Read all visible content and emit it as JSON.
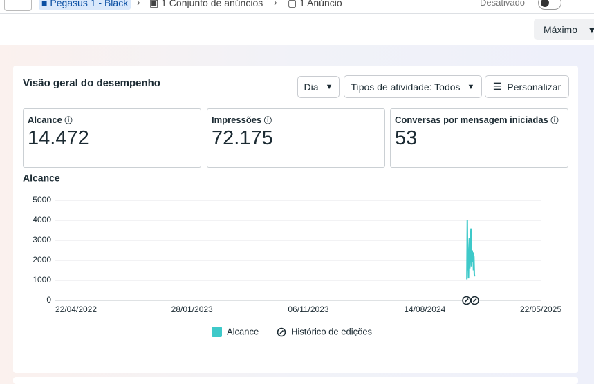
{
  "breadcrumb": [
    "Pegasus 1 - Black",
    "1 Conjunto de anúncios",
    "1 Anúncio"
  ],
  "toggle_label": "Desativado",
  "range_button": "Máximo",
  "panel": {
    "title": "Visão geral do desempenho",
    "buttons": [
      "Dia",
      "Tipos de atividade: Todos",
      "Personalizar"
    ],
    "metrics": [
      {
        "label": "Alcance",
        "value": "14.472",
        "change": "—"
      },
      {
        "label": "Impressões",
        "value": "72.175",
        "change": "—"
      },
      {
        "label": "Conversas por mensagem iniciadas",
        "value": "53",
        "change": "—"
      }
    ]
  },
  "chart_data": {
    "type": "line",
    "title": "Alcance",
    "x": [
      "24/11/2024",
      "25/11/2024",
      "26/11/2024",
      "27/11/2024",
      "28/11/2024",
      "29/11/2024",
      "30/11/2024",
      "01/12/2024",
      "02/12/2024",
      "03/12/2024",
      "04/12/2024",
      "05/12/2024",
      "06/12/2024",
      "07/12/2024",
      "08/12/2024",
      "09/12/2024",
      "10/12/2024",
      "11/12/2024",
      "12/12/2024",
      "13/12/2024"
    ],
    "series": [
      {
        "name": "Alcance",
        "color": "#3ec9c9",
        "values": [
          1050,
          4000,
          1500,
          2400,
          1100,
          2600,
          3100,
          1600,
          2200,
          2900,
          3600,
          1700,
          2100,
          2500,
          1900,
          2400,
          1500,
          2200,
          1300,
          1200
        ]
      }
    ],
    "xlim": [
      "22/04/2022",
      "22/05/2025"
    ],
    "xticks": [
      "22/04/2022",
      "28/01/2023",
      "06/11/2023",
      "14/08/2024",
      "22/05/2025"
    ],
    "ylim": [
      0,
      5000
    ],
    "yticks": [
      0,
      1000,
      2000,
      3000,
      4000,
      5000
    ],
    "grid": true,
    "edit_history": {
      "name": "Histórico de edições",
      "x": [
        "23/11/2024",
        "13/12/2024"
      ]
    }
  }
}
